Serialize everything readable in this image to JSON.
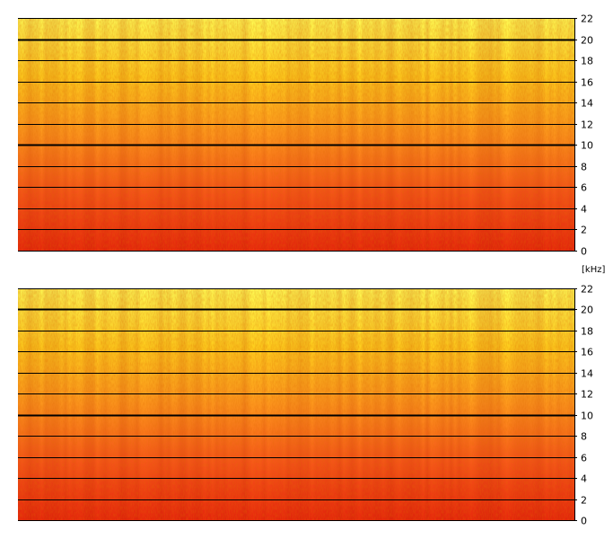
{
  "chart_data": [
    {
      "type": "heatmap",
      "channel": "top",
      "ylabel": "",
      "ylim": [
        0,
        22
      ],
      "yticks": [
        0,
        2,
        4,
        6,
        8,
        10,
        12,
        14,
        16,
        18,
        20,
        22
      ],
      "ytick_labels": [
        "0",
        "2",
        "4",
        "6",
        "8",
        "10",
        "12",
        "14",
        "16",
        "18",
        "20",
        "22"
      ],
      "grid": true,
      "colormap": [
        "#e8280c",
        "#f8581a",
        "#ff9a1e",
        "#ffd21e",
        "#ffff55"
      ]
    },
    {
      "type": "heatmap",
      "channel": "bottom",
      "ylabel": "",
      "ylim": [
        0,
        22
      ],
      "yticks": [
        0,
        2,
        4,
        6,
        8,
        10,
        12,
        14,
        16,
        18,
        20,
        22
      ],
      "ytick_labels": [
        "0",
        "2",
        "4",
        "6",
        "8",
        "10",
        "12",
        "14",
        "16",
        "18",
        "20",
        "22"
      ],
      "grid": true,
      "colormap": [
        "#e8280c",
        "#f8581a",
        "#ff9a1e",
        "#ffd21e",
        "#ffff55"
      ]
    }
  ],
  "unit_label": "[kHz]"
}
